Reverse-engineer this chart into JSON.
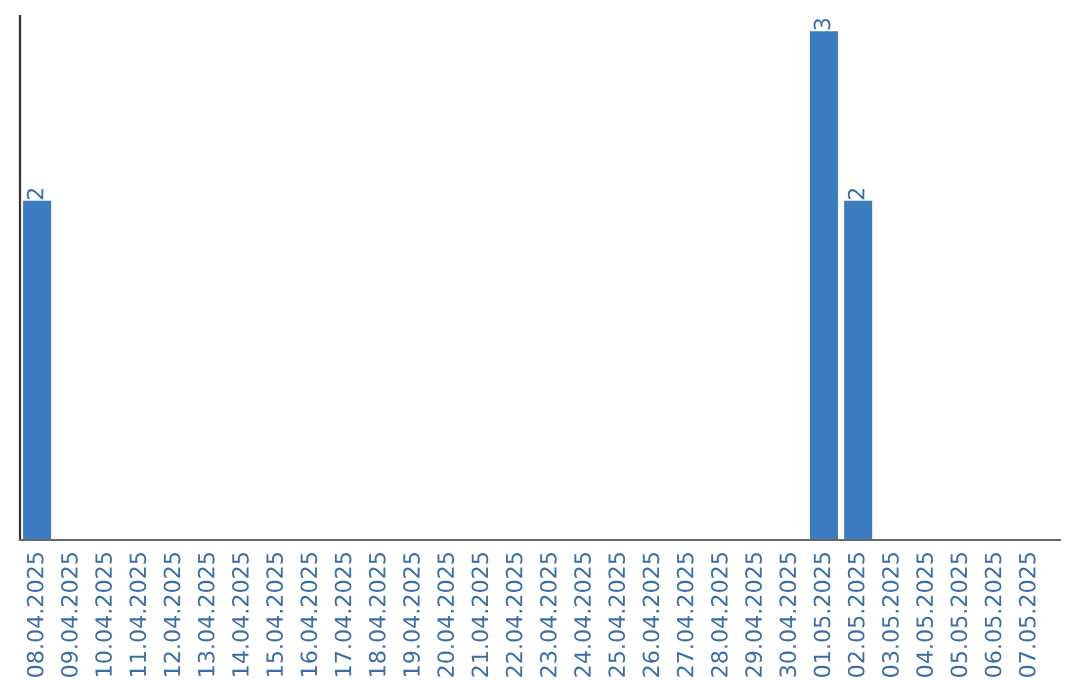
{
  "chart_data": {
    "type": "bar",
    "categories": [
      "08.04.2025",
      "09.04.2025",
      "10.04.2025",
      "11.04.2025",
      "12.04.2025",
      "13.04.2025",
      "14.04.2025",
      "15.04.2025",
      "16.04.2025",
      "17.04.2025",
      "18.04.2025",
      "19.04.2025",
      "20.04.2025",
      "21.04.2025",
      "22.04.2025",
      "23.04.2025",
      "24.04.2025",
      "25.04.2025",
      "26.04.2025",
      "27.04.2025",
      "28.04.2025",
      "29.04.2025",
      "30.04.2025",
      "01.05.2025",
      "02.05.2025",
      "03.05.2025",
      "04.05.2025",
      "05.05.2025",
      "06.05.2025",
      "07.05.2025"
    ],
    "values": [
      2,
      0,
      0,
      0,
      0,
      0,
      0,
      0,
      0,
      0,
      0,
      0,
      0,
      0,
      0,
      0,
      0,
      0,
      0,
      0,
      0,
      0,
      0,
      3,
      2,
      0,
      0,
      0,
      0,
      0
    ],
    "value_labels": [
      "2",
      null,
      null,
      null,
      null,
      null,
      null,
      null,
      null,
      null,
      null,
      null,
      null,
      null,
      null,
      null,
      null,
      null,
      null,
      null,
      null,
      null,
      null,
      "3",
      "2",
      null,
      null,
      null,
      null,
      null
    ],
    "color": "#3b7bbf",
    "tick_labels": "x",
    "grid": false,
    "legend": false
  }
}
